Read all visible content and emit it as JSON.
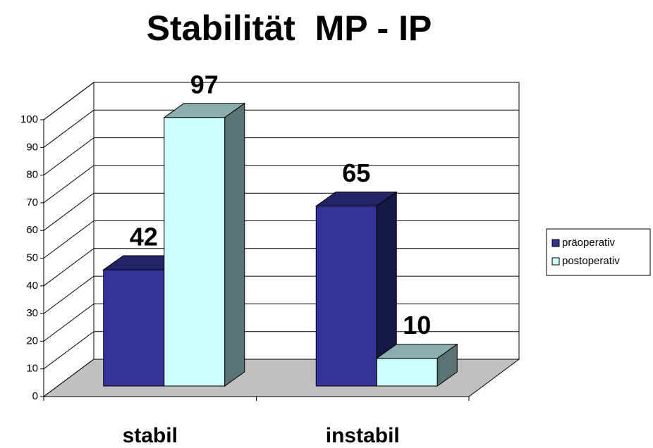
{
  "chart_data": {
    "type": "bar",
    "title": "Stabilität  MP - IP",
    "categories": [
      "stabil",
      "instabil"
    ],
    "series": [
      {
        "name": "präoperativ",
        "color": "#333399",
        "values": [
          42,
          65
        ]
      },
      {
        "name": "postoperativ",
        "color": "#ccffff",
        "values": [
          97,
          10
        ]
      }
    ],
    "ylim": [
      0,
      100
    ],
    "yticks": [
      0,
      10,
      20,
      30,
      40,
      50,
      60,
      70,
      80,
      90,
      100
    ],
    "grid": true,
    "legend": "right"
  }
}
